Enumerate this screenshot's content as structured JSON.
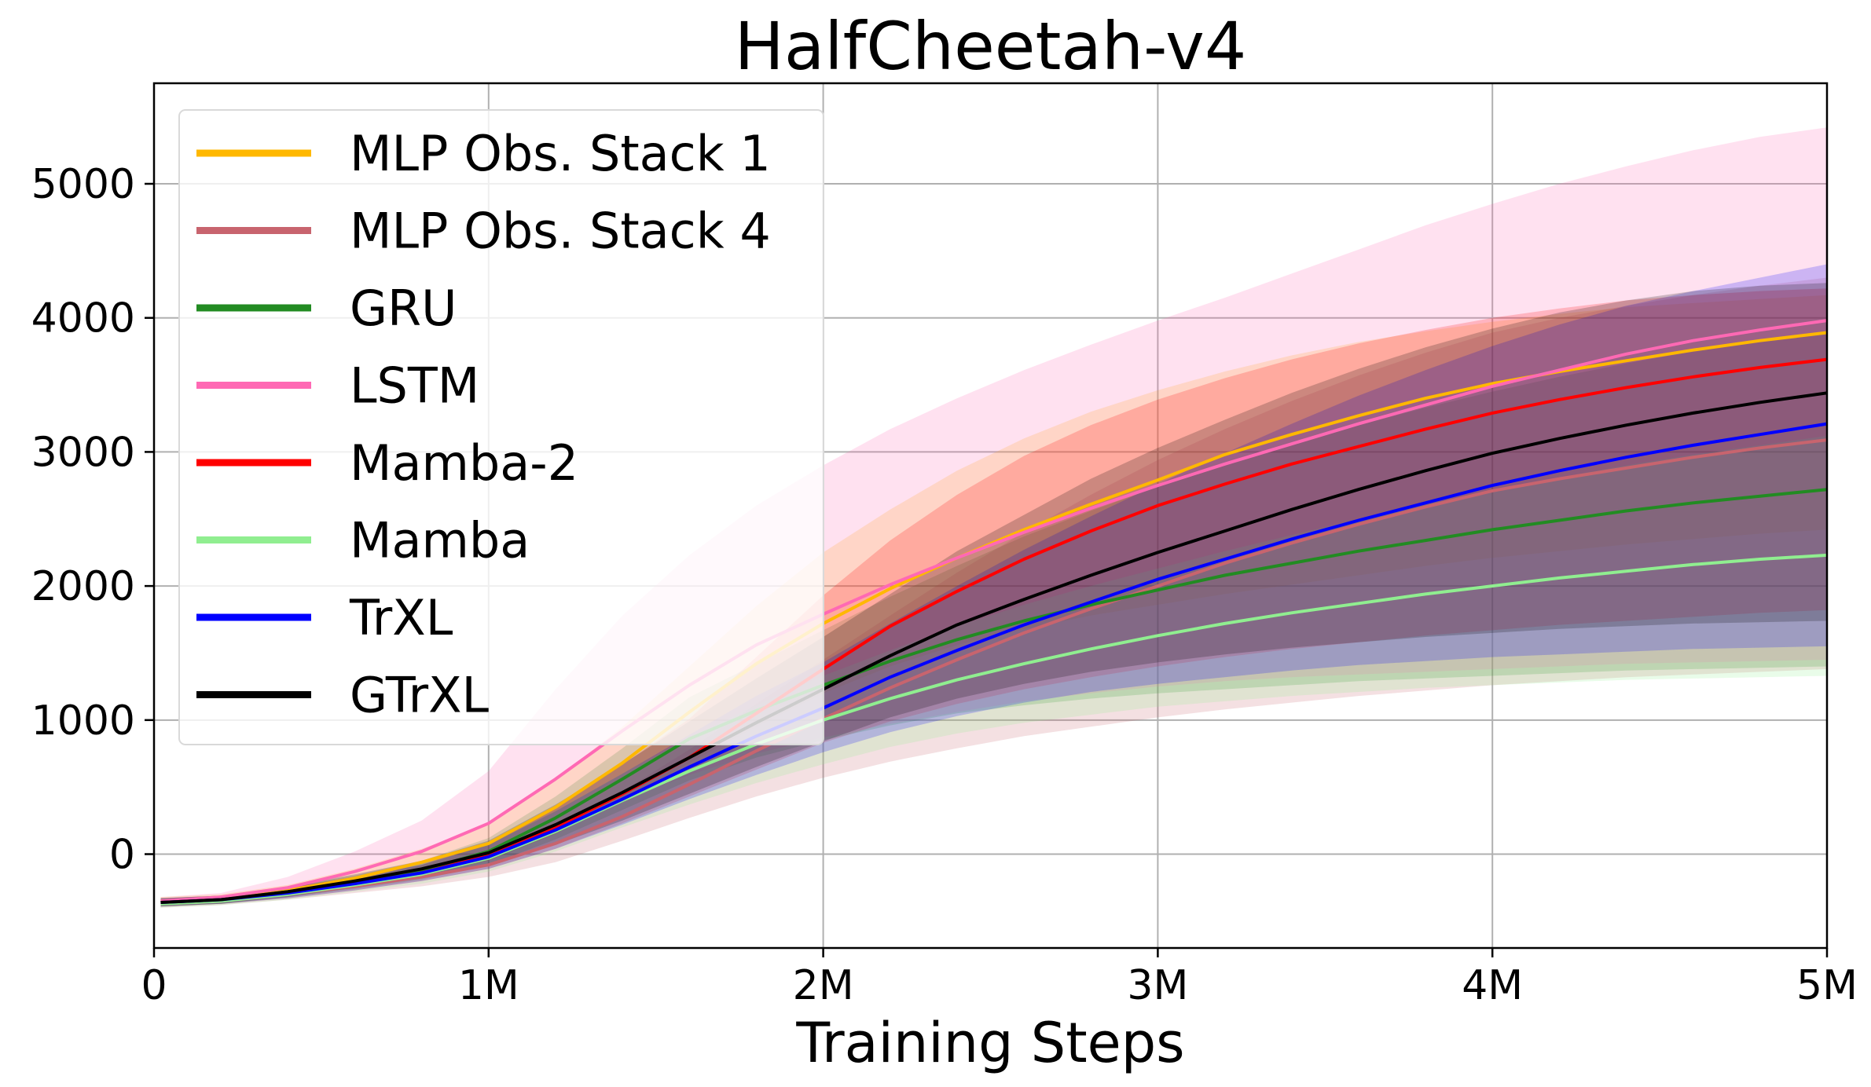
{
  "chart_data": {
    "type": "line",
    "title": "HalfCheetah-v4",
    "xlabel": "Training Steps",
    "ylabel": "",
    "xlim": [
      0,
      5000000
    ],
    "ylim": [
      -700,
      5750
    ],
    "x_ticks": [
      {
        "value": 0,
        "label": "0"
      },
      {
        "value": 1000000,
        "label": "1M"
      },
      {
        "value": 2000000,
        "label": "2M"
      },
      {
        "value": 3000000,
        "label": "3M"
      },
      {
        "value": 4000000,
        "label": "4M"
      },
      {
        "value": 5000000,
        "label": "5M"
      }
    ],
    "y_ticks": [
      {
        "value": 0,
        "label": "0"
      },
      {
        "value": 1000,
        "label": "1000"
      },
      {
        "value": 2000,
        "label": "2000"
      },
      {
        "value": 3000,
        "label": "3000"
      },
      {
        "value": 4000,
        "label": "4000"
      },
      {
        "value": 5000,
        "label": "5000"
      }
    ],
    "grid": true,
    "legend_position": "top-left",
    "x": [
      20000,
      200000,
      400000,
      600000,
      800000,
      1000000,
      1200000,
      1400000,
      1600000,
      1800000,
      2000000,
      2200000,
      2400000,
      2600000,
      2800000,
      3000000,
      3200000,
      3400000,
      3600000,
      3800000,
      4000000,
      4200000,
      4400000,
      4600000,
      4800000,
      5000000
    ],
    "series": [
      {
        "name": "MLP Obs. Stack 1",
        "color": "#FFB800",
        "values": [
          -350,
          -330,
          -270,
          -180,
          -60,
          80,
          350,
          680,
          1060,
          1420,
          1720,
          1980,
          2210,
          2420,
          2610,
          2790,
          2980,
          3130,
          3270,
          3400,
          3510,
          3600,
          3680,
          3760,
          3830,
          3890
        ],
        "lower": [
          -380,
          -350,
          -310,
          -240,
          -150,
          -50,
          150,
          400,
          680,
          950,
          1200,
          1400,
          1560,
          1680,
          1780,
          1860,
          1940,
          2010,
          2080,
          2150,
          2210,
          2260,
          2310,
          2350,
          2390,
          2420
        ],
        "upper": [
          -320,
          -300,
          -230,
          -110,
          40,
          220,
          560,
          950,
          1400,
          1850,
          2250,
          2570,
          2860,
          3100,
          3300,
          3460,
          3600,
          3720,
          3820,
          3900,
          3970,
          4030,
          4080,
          4110,
          4140,
          4170
        ]
      },
      {
        "name": "MLP Obs. Stack 4",
        "color": "#C8646E",
        "values": [
          -370,
          -350,
          -300,
          -240,
          -170,
          -80,
          80,
          280,
          520,
          770,
          1010,
          1240,
          1450,
          1650,
          1830,
          2000,
          2170,
          2320,
          2460,
          2590,
          2710,
          2800,
          2880,
          2960,
          3030,
          3090
        ],
        "lower": [
          -400,
          -380,
          -340,
          -290,
          -240,
          -170,
          -60,
          100,
          270,
          430,
          570,
          690,
          790,
          880,
          950,
          1020,
          1080,
          1130,
          1180,
          1220,
          1260,
          1290,
          1320,
          1340,
          1360,
          1380
        ],
        "upper": [
          -340,
          -320,
          -260,
          -190,
          -100,
          20,
          230,
          470,
          780,
          1120,
          1450,
          1780,
          2100,
          2400,
          2680,
          2940,
          3170,
          3380,
          3570,
          3740,
          3890,
          4000,
          4090,
          4170,
          4240,
          4300
        ]
      },
      {
        "name": "GRU",
        "color": "#228B22",
        "values": [
          -360,
          -340,
          -280,
          -210,
          -120,
          20,
          270,
          560,
          860,
          1070,
          1260,
          1440,
          1600,
          1740,
          1860,
          1970,
          2080,
          2170,
          2260,
          2340,
          2420,
          2490,
          2560,
          2620,
          2670,
          2720
        ],
        "lower": [
          -390,
          -370,
          -320,
          -260,
          -190,
          -80,
          110,
          330,
          550,
          720,
          850,
          960,
          1050,
          1110,
          1160,
          1200,
          1230,
          1260,
          1290,
          1310,
          1330,
          1350,
          1370,
          1380,
          1390,
          1400
        ],
        "upper": [
          -330,
          -310,
          -240,
          -160,
          -50,
          120,
          430,
          790,
          1170,
          1420,
          1670,
          1920,
          2150,
          2370,
          2560,
          2740,
          2910,
          3060,
          3200,
          3330,
          3450,
          3560,
          3660,
          3750,
          3830,
          3900
        ]
      },
      {
        "name": "LSTM",
        "color": "#FF69B4",
        "values": [
          -350,
          -320,
          -250,
          -130,
          20,
          230,
          560,
          920,
          1260,
          1560,
          1790,
          2010,
          2210,
          2400,
          2580,
          2750,
          2910,
          3060,
          3210,
          3350,
          3490,
          3610,
          3730,
          3830,
          3910,
          3980
        ],
        "lower": [
          -380,
          -350,
          -310,
          -230,
          -130,
          -10,
          190,
          400,
          590,
          750,
          870,
          970,
          1060,
          1140,
          1200,
          1250,
          1290,
          1320,
          1340,
          1360,
          1380,
          1400,
          1420,
          1430,
          1440,
          1450
        ],
        "upper": [
          -320,
          -290,
          -170,
          20,
          250,
          620,
          1230,
          1780,
          2230,
          2600,
          2900,
          3170,
          3400,
          3610,
          3800,
          3980,
          4150,
          4330,
          4510,
          4690,
          4850,
          5000,
          5130,
          5250,
          5350,
          5420
        ]
      },
      {
        "name": "Mamba-2",
        "color": "#FF0000",
        "values": [
          -360,
          -340,
          -290,
          -220,
          -140,
          -10,
          200,
          450,
          720,
          1050,
          1380,
          1700,
          1960,
          2200,
          2410,
          2600,
          2760,
          2910,
          3040,
          3170,
          3290,
          3390,
          3480,
          3560,
          3630,
          3690
        ],
        "lower": [
          -390,
          -370,
          -330,
          -270,
          -200,
          -110,
          40,
          230,
          430,
          630,
          830,
          990,
          1120,
          1230,
          1320,
          1400,
          1470,
          1530,
          1580,
          1630,
          1670,
          1710,
          1740,
          1770,
          1800,
          1820
        ],
        "upper": [
          -330,
          -310,
          -250,
          -170,
          -80,
          90,
          360,
          670,
          1010,
          1470,
          1930,
          2340,
          2680,
          2970,
          3200,
          3390,
          3550,
          3690,
          3810,
          3910,
          4000,
          4070,
          4130,
          4170,
          4200,
          4220
        ]
      },
      {
        "name": "Mamba",
        "color": "#90EE90",
        "values": [
          -370,
          -350,
          -300,
          -230,
          -150,
          -30,
          170,
          400,
          620,
          820,
          1000,
          1160,
          1300,
          1420,
          1530,
          1630,
          1720,
          1800,
          1870,
          1940,
          2000,
          2060,
          2110,
          2160,
          2200,
          2230
        ],
        "lower": [
          -400,
          -380,
          -340,
          -280,
          -220,
          -130,
          20,
          200,
          370,
          530,
          670,
          800,
          900,
          980,
          1040,
          1100,
          1140,
          1180,
          1210,
          1240,
          1260,
          1280,
          1300,
          1310,
          1320,
          1330
        ],
        "upper": [
          -340,
          -320,
          -260,
          -180,
          -80,
          70,
          320,
          600,
          870,
          1110,
          1330,
          1520,
          1700,
          1860,
          2000,
          2130,
          2260,
          2380,
          2500,
          2610,
          2710,
          2810,
          2900,
          2980,
          3050,
          3120
        ]
      },
      {
        "name": "TrXL",
        "color": "#0000FF",
        "values": [
          -360,
          -340,
          -290,
          -220,
          -140,
          -20,
          180,
          410,
          650,
          880,
          1090,
          1320,
          1520,
          1710,
          1880,
          2050,
          2200,
          2350,
          2490,
          2620,
          2750,
          2860,
          2960,
          3050,
          3130,
          3210
        ],
        "lower": [
          -390,
          -370,
          -330,
          -270,
          -200,
          -110,
          40,
          220,
          410,
          590,
          760,
          910,
          1030,
          1130,
          1210,
          1270,
          1320,
          1370,
          1410,
          1440,
          1470,
          1490,
          1510,
          1530,
          1540,
          1550
        ],
        "upper": [
          -330,
          -310,
          -250,
          -170,
          -80,
          70,
          320,
          600,
          890,
          1180,
          1430,
          1720,
          2000,
          2270,
          2520,
          2760,
          2990,
          3210,
          3420,
          3610,
          3790,
          3950,
          4090,
          4200,
          4300,
          4400
        ]
      },
      {
        "name": "GTrXL",
        "color": "#000000",
        "values": [
          -360,
          -340,
          -280,
          -200,
          -110,
          10,
          220,
          460,
          720,
          980,
          1230,
          1480,
          1710,
          1900,
          2080,
          2250,
          2410,
          2570,
          2720,
          2860,
          2990,
          3100,
          3200,
          3290,
          3370,
          3440
        ],
        "lower": [
          -390,
          -370,
          -320,
          -250,
          -170,
          -80,
          70,
          250,
          450,
          650,
          840,
          1020,
          1160,
          1270,
          1360,
          1430,
          1490,
          1540,
          1580,
          1620,
          1650,
          1680,
          1700,
          1720,
          1730,
          1740
        ],
        "upper": [
          -330,
          -310,
          -240,
          -150,
          -50,
          100,
          370,
          670,
          990,
          1310,
          1620,
          1940,
          2260,
          2530,
          2800,
          3030,
          3240,
          3440,
          3620,
          3780,
          3920,
          4040,
          4130,
          4200,
          4240,
          4260
        ]
      }
    ]
  }
}
